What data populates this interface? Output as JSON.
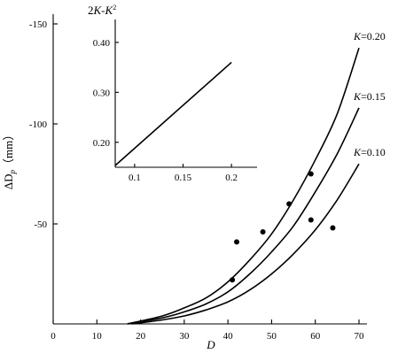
{
  "chart_data": [
    {
      "type": "line",
      "x": [],
      "xlabel": "D",
      "ylabel": "ΔD",
      "ylabel_sub": "p",
      "ylabel_unit": "（mm）",
      "xlim": [
        0,
        70
      ],
      "ylim": [
        0,
        -150
      ],
      "xticks": [
        0,
        10,
        20,
        30,
        40,
        50,
        60,
        70
      ],
      "xtick_labels": [
        "0",
        "10",
        "20",
        "30",
        "40",
        "50",
        "60",
        "70"
      ],
      "yticks": [
        -50,
        -100,
        -150
      ],
      "ytick_labels": [
        "-50",
        "-100",
        "-150"
      ],
      "series": [
        {
          "name": "K=0.20",
          "label_k": "K",
          "label_v": "=0.20",
          "x": [
            17,
            25,
            30,
            35,
            40,
            45,
            50,
            55,
            60,
            65,
            70
          ],
          "y": [
            0,
            -4,
            -8,
            -13,
            -21,
            -32,
            -45,
            -62,
            -82,
            -105,
            -138
          ]
        },
        {
          "name": "K=0.15",
          "label_k": "K",
          "label_v": "=0.15",
          "x": [
            17,
            25,
            30,
            35,
            40,
            45,
            50,
            55,
            60,
            65,
            70
          ],
          "y": [
            0,
            -3,
            -6,
            -10,
            -16,
            -25,
            -36,
            -49,
            -66,
            -85,
            -108
          ]
        },
        {
          "name": "K=0.10",
          "label_k": "K",
          "label_v": "=0.10",
          "x": [
            18,
            25,
            30,
            35,
            40,
            45,
            50,
            55,
            60,
            65,
            70
          ],
          "y": [
            0,
            -2,
            -4,
            -7,
            -11,
            -17,
            -25,
            -35,
            -47,
            -62,
            -80
          ]
        }
      ],
      "points": [
        {
          "x": 41,
          "y": -22
        },
        {
          "x": 42,
          "y": -41
        },
        {
          "x": 48,
          "y": -46
        },
        {
          "x": 54,
          "y": -60
        },
        {
          "x": 59,
          "y": -75
        },
        {
          "x": 59,
          "y": -52
        },
        {
          "x": 64,
          "y": -48
        }
      ]
    },
    {
      "type": "line",
      "title_parts": [
        "2",
        "K",
        "-",
        "K",
        "2"
      ],
      "xlim": [
        0.08,
        0.22
      ],
      "ylim": [
        0.15,
        0.46
      ],
      "xticks": [
        0.1,
        0.15,
        0.2
      ],
      "xtick_labels": [
        "0.1",
        "0.15",
        "0.2"
      ],
      "yticks": [
        0.2,
        0.3,
        0.4
      ],
      "ytick_labels": [
        "0.20",
        "0.30",
        "0.40"
      ],
      "series": [
        {
          "x": [
            0.08,
            0.2
          ],
          "y": [
            0.1536,
            0.36
          ]
        }
      ]
    }
  ]
}
